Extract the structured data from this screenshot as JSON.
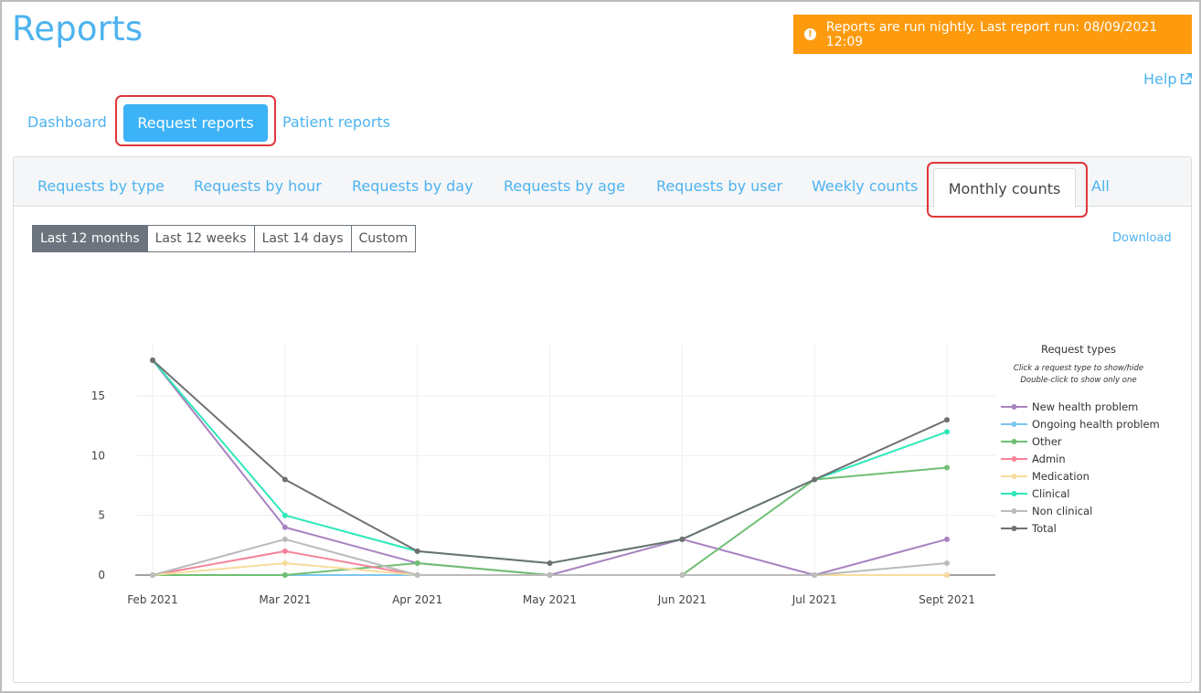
{
  "header": {
    "title": "Reports",
    "notice": "Reports are run nightly. Last report run: 08/09/2021 12:09",
    "notice_icon": "exclamation-circle-icon",
    "help": "Help"
  },
  "top_nav": {
    "dashboard": "Dashboard",
    "request_reports": "Request reports",
    "patient_reports": "Patient reports"
  },
  "tabs": {
    "by_type": "Requests by type",
    "by_hour": "Requests by hour",
    "by_day": "Requests by day",
    "by_age": "Requests by age",
    "by_user": "Requests by user",
    "weekly": "Weekly counts",
    "monthly": "Monthly counts",
    "all": "All"
  },
  "range": {
    "last_12_months": "Last 12 months",
    "last_12_weeks": "Last 12 weeks",
    "last_14_days": "Last 14 days",
    "custom": "Custom"
  },
  "download": "Download",
  "colors": {
    "accent": "#4db3f0",
    "notice": "#fd9a0d",
    "highlight": "#e0373a"
  },
  "chart_data": {
    "type": "line",
    "title": "",
    "xlabel": "",
    "ylabel": "",
    "x": [
      "Feb 2021",
      "Mar 2021",
      "Apr 2021",
      "May 2021",
      "Jun 2021",
      "Jul 2021",
      "Sept 2021"
    ],
    "y_ticks": [
      0,
      5,
      10,
      15
    ],
    "ylim": [
      0,
      19.3
    ],
    "grid": true,
    "legend": {
      "title": "Request types",
      "hint1": "Click a request type to show/hide",
      "hint2": "Double-click to show only one",
      "placement": "right"
    },
    "series": [
      {
        "name": "New health problem",
        "color": "#a883c0",
        "values": [
          18,
          4,
          1,
          0,
          3,
          0,
          3
        ]
      },
      {
        "name": "Ongoing health problem",
        "color": "#7cc5f0",
        "values": [
          0,
          0,
          0,
          0,
          0,
          0,
          0
        ]
      },
      {
        "name": "Other",
        "color": "#6fbf73",
        "values": [
          0,
          0,
          1,
          0,
          0,
          8,
          9
        ]
      },
      {
        "name": "Admin",
        "color": "#f4849a",
        "values": [
          0,
          2,
          0,
          0,
          0,
          0,
          0
        ]
      },
      {
        "name": "Medication",
        "color": "#f7dc9e",
        "values": [
          0,
          1,
          0,
          0,
          0,
          0,
          0
        ]
      },
      {
        "name": "Clinical",
        "color": "#2de8b9",
        "values": [
          18,
          5,
          2,
          1,
          3,
          8,
          12
        ]
      },
      {
        "name": "Non clinical",
        "color": "#bbbbbb",
        "values": [
          0,
          3,
          0,
          0,
          0,
          0,
          1
        ]
      },
      {
        "name": "Total",
        "color": "#707070",
        "values": [
          18,
          8,
          2,
          1,
          3,
          8,
          13
        ]
      }
    ]
  }
}
